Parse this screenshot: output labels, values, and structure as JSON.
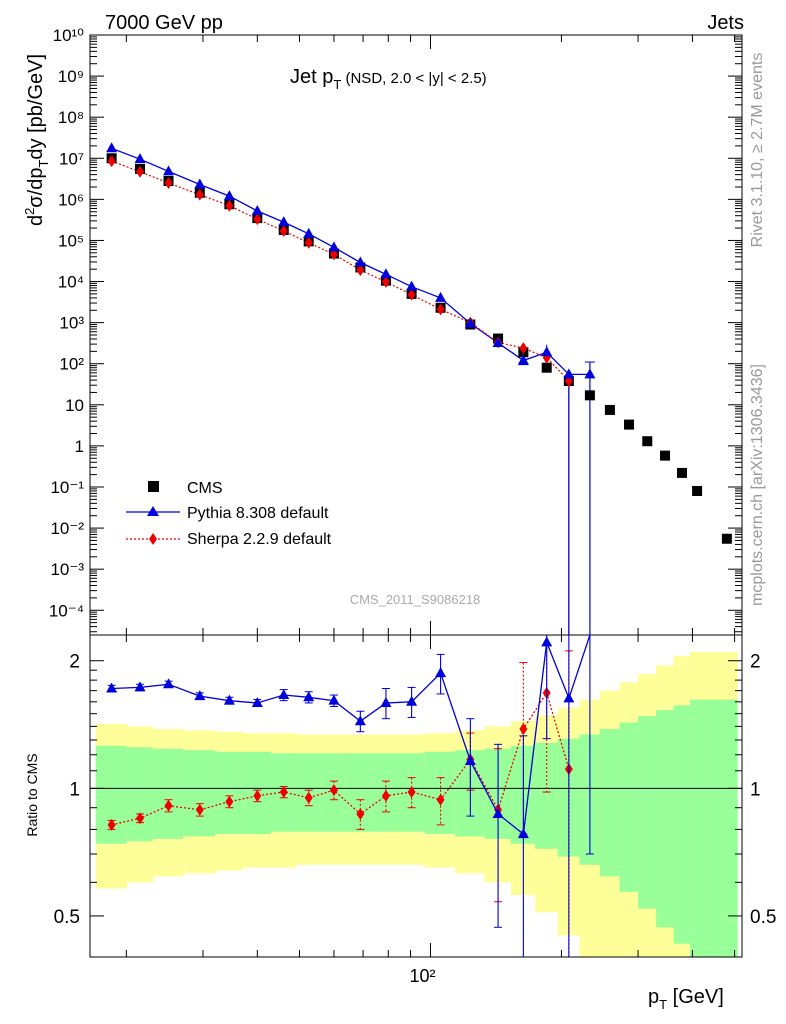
{
  "header": {
    "left": "7000 GeV pp",
    "right": "Jets"
  },
  "side_labels": {
    "rivet": "Rivet 3.1.10, ≥ 2.7M events",
    "mcplots": "mcplots.cern.ch [arXiv:1306.3436]"
  },
  "watermark": "CMS_2011_S9086218",
  "colors": {
    "cms": "#000000",
    "pythia": "#0000dd",
    "sherpa": "#ee0000",
    "band_inner": "#99ff99",
    "band_outer": "#ffff99"
  },
  "chart_data": {
    "type": "scatter",
    "title_main": "Jet p",
    "title_sub": "T",
    "title_rest": " (NSD, 2.0 < |y| < 2.5)",
    "xlabel_main": "p",
    "xlabel_sub": "T",
    "xlabel_rest": " [GeV]",
    "xscale": "log",
    "xlim": [
      16.5,
      520
    ],
    "x_tick_labels": [
      "10²"
    ],
    "main": {
      "ylabel": "d²σ/dp_T dy [pb/GeV]",
      "yscale": "log",
      "ylim": [
        2.5e-05,
        10000000000
      ],
      "y_tick_labels": [
        "10⁻⁴",
        "10⁻³",
        "10⁻²",
        "10⁻¹",
        "1",
        "10",
        "10²",
        "10³",
        "10⁴",
        "10⁵",
        "10⁶",
        "10⁷",
        "10⁸",
        "10⁹",
        "10¹⁰"
      ]
    },
    "ratio": {
      "ylabel": "Ratio to CMS",
      "ylim": [
        0.4,
        2.3
      ],
      "y_tick_labels": [
        "0.5",
        "1",
        "2"
      ]
    },
    "legend": {
      "position": "left",
      "entries": [
        "CMS",
        "Pythia 8.308 default",
        "Sherpa 2.2.9 default"
      ]
    },
    "bins": [
      [
        17,
        20
      ],
      [
        20,
        23
      ],
      [
        23,
        27
      ],
      [
        27,
        32
      ],
      [
        32,
        37
      ],
      [
        37,
        43
      ],
      [
        43,
        49
      ],
      [
        49,
        56
      ],
      [
        56,
        64
      ],
      [
        64,
        74
      ],
      [
        74,
        84
      ],
      [
        84,
        97
      ],
      [
        97,
        114
      ],
      [
        114,
        133
      ],
      [
        133,
        153
      ],
      [
        153,
        174
      ],
      [
        174,
        196
      ],
      [
        196,
        220
      ],
      [
        220,
        245
      ],
      [
        245,
        272
      ],
      [
        272,
        300
      ],
      [
        300,
        330
      ],
      [
        330,
        362
      ],
      [
        362,
        395
      ],
      [
        395,
        430
      ],
      [
        430,
        468
      ],
      [
        468,
        507
      ]
    ],
    "cms": {
      "x": [
        18.5,
        21.5,
        25,
        29.5,
        34.5,
        40,
        46,
        52.5,
        60,
        69,
        79,
        90.5,
        105.5,
        123.5,
        143,
        163.5,
        185,
        208,
        232.5,
        258.5,
        286,
        315,
        346,
        378.5,
        410,
        480
      ],
      "y": [
        10000000,
        5500000,
        2800000,
        1450000,
        760000,
        350000,
        180000,
        95000,
        48000,
        22000,
        10500,
        5000,
        2300,
        900,
        410,
        190,
        80,
        38,
        17,
        7.5,
        3.3,
        1.3,
        0.58,
        0.22,
        0.08,
        0.0055
      ]
    },
    "series": [
      {
        "name": "Pythia 8.308 default",
        "x": [
          18.5,
          21.5,
          25,
          29.5,
          34.5,
          40,
          46,
          52.5,
          60,
          69,
          79,
          90.5,
          105.5,
          123.5,
          143,
          163.5,
          185,
          208,
          232.5
        ],
        "y": [
          17500000,
          9500000,
          4800000,
          2300000,
          1200000,
          520000,
          280000,
          145000,
          68000,
          29000,
          15000,
          7500,
          4000,
          950,
          320,
          120,
          190,
          55,
          55
        ],
        "ratio": [
          1.72,
          1.73,
          1.76,
          1.65,
          1.61,
          1.59,
          1.66,
          1.64,
          1.61,
          1.44,
          1.59,
          1.6,
          1.87,
          1.16,
          0.87,
          0.78,
          2.21,
          1.63,
          3.2
        ],
        "ratio_err": [
          0.03,
          0.03,
          0.03,
          0.03,
          0.03,
          0.03,
          0.05,
          0.05,
          0.05,
          0.08,
          0.13,
          0.13,
          0.2,
          0.3,
          0.4,
          0.55,
          0.9,
          1.35,
          2.5
        ]
      },
      {
        "name": "Sherpa 2.2.9 default",
        "x": [
          18.5,
          21.5,
          25,
          29.5,
          34.5,
          40,
          46,
          52.5,
          60,
          69,
          79,
          90.5,
          105.5,
          123.5,
          143,
          163.5,
          185,
          208
        ],
        "y": [
          8500000,
          4700000,
          2500000,
          1300000,
          700000,
          330000,
          170000,
          88000,
          46000,
          19000,
          9800,
          4800,
          2100,
          1000,
          330,
          240,
          140,
          38
        ],
        "ratio": [
          0.82,
          0.85,
          0.91,
          0.89,
          0.93,
          0.96,
          0.98,
          0.95,
          0.99,
          0.87,
          0.96,
          0.98,
          0.94,
          1.17,
          0.89,
          1.38,
          1.68,
          1.11
        ],
        "ratio_err": [
          0.02,
          0.02,
          0.03,
          0.03,
          0.03,
          0.03,
          0.03,
          0.04,
          0.05,
          0.07,
          0.08,
          0.08,
          0.12,
          0.18,
          0.35,
          0.6,
          0.7,
          1.0
        ]
      }
    ],
    "band_inner_rel": [
      0.26,
      0.25,
      0.24,
      0.23,
      0.22,
      0.22,
      0.21,
      0.21,
      0.21,
      0.21,
      0.21,
      0.21,
      0.22,
      0.23,
      0.24,
      0.26,
      0.28,
      0.31,
      0.34,
      0.38,
      0.43,
      0.48,
      0.53,
      0.57,
      0.62,
      0.62,
      0.62
    ],
    "band_outer_rel": [
      0.42,
      0.4,
      0.38,
      0.37,
      0.36,
      0.35,
      0.35,
      0.34,
      0.34,
      0.34,
      0.34,
      0.34,
      0.35,
      0.37,
      0.4,
      0.44,
      0.49,
      0.55,
      0.62,
      0.7,
      0.78,
      0.86,
      0.95,
      1.05,
      1.1,
      1.1,
      1.1
    ]
  }
}
